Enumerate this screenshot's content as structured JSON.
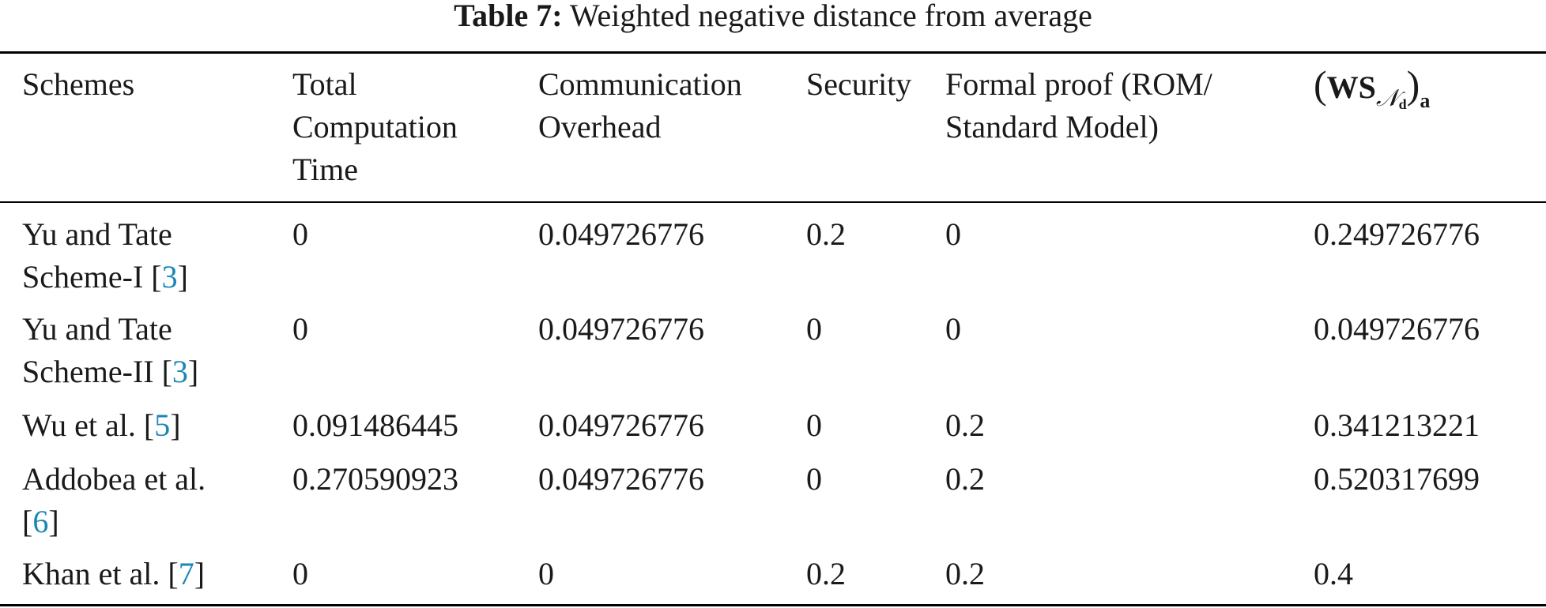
{
  "table": {
    "caption_label": "Table 7:",
    "caption_text": "Weighted negative distance from average",
    "headers": {
      "schemes": [
        "Schemes"
      ],
      "total_time": [
        "Total",
        "Computation",
        "Time"
      ],
      "communication": [
        "Communication",
        "Overhead"
      ],
      "security": [
        "Security"
      ],
      "formal_proof": [
        "Formal proof (ROM/",
        "Standard Model)"
      ],
      "ws": {
        "main": "WS",
        "sub_symbol": "𝒩",
        "sub_sub": "d",
        "outer_sub": "a"
      }
    },
    "rows": [
      {
        "scheme_lines": [
          "Yu and Tate",
          "Scheme-I ["
        ],
        "ref": "3",
        "total_time": "0",
        "communication": "0.049726776",
        "security": "0.2",
        "formal_proof": "0",
        "ws": "0.249726776"
      },
      {
        "scheme_lines": [
          "Yu and Tate",
          "Scheme-II ["
        ],
        "ref": "3",
        "total_time": "0",
        "communication": "0.049726776",
        "security": "0",
        "formal_proof": "0",
        "ws": "0.049726776"
      },
      {
        "scheme_lines": [
          "Wu et al. ["
        ],
        "ref": "5",
        "total_time": "0.091486445",
        "communication": "0.049726776",
        "security": "0",
        "formal_proof": "0.2",
        "ws": "0.341213221"
      },
      {
        "scheme_lines": [
          "Addobea et al.",
          "["
        ],
        "ref": "6",
        "total_time": "0.270590923",
        "communication": "0.049726776",
        "security": "0",
        "formal_proof": "0.2",
        "ws": "0.520317699"
      },
      {
        "scheme_lines": [
          "Khan et al. ["
        ],
        "ref": "7",
        "total_time": "0",
        "communication": "0",
        "security": "0.2",
        "formal_proof": "0.2",
        "ws": "0.4"
      }
    ],
    "bracket_close": "]"
  }
}
